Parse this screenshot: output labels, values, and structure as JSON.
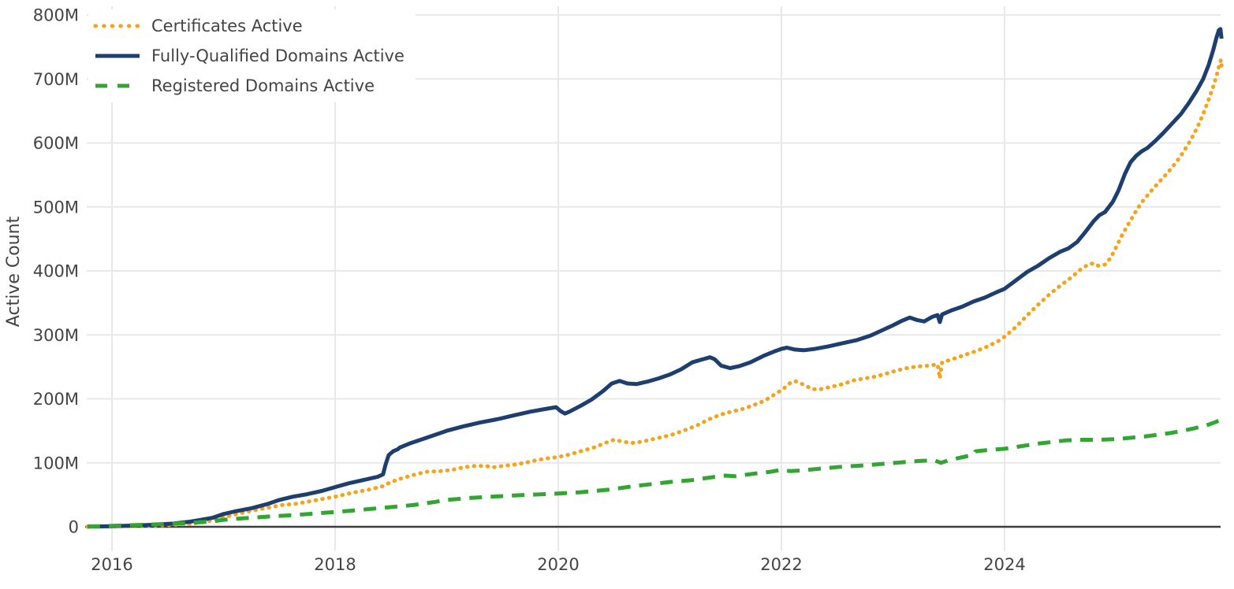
{
  "chart_data": {
    "type": "line",
    "title": "",
    "xlabel": "",
    "ylabel": "Active Count",
    "units": "millions",
    "ylim_M": [
      0,
      800
    ],
    "xlim_year": [
      2015.75,
      2025.97
    ],
    "grid": true,
    "legend_position": "top-left",
    "x_ticks": [
      {
        "year": 2016,
        "label": "2016"
      },
      {
        "year": 2018,
        "label": "2018"
      },
      {
        "year": 2020,
        "label": "2020"
      },
      {
        "year": 2022,
        "label": "2022"
      },
      {
        "year": 2024,
        "label": "2024"
      }
    ],
    "y_ticks": [
      {
        "value": 0,
        "label": "0"
      },
      {
        "value": 100,
        "label": "100M"
      },
      {
        "value": 200,
        "label": "200M"
      },
      {
        "value": 300,
        "label": "300M"
      },
      {
        "value": 400,
        "label": "400M"
      },
      {
        "value": 500,
        "label": "500M"
      },
      {
        "value": 600,
        "label": "600M"
      },
      {
        "value": 700,
        "label": "700M"
      },
      {
        "value": 800,
        "label": "800M"
      }
    ],
    "series": [
      {
        "name": "Certificates Active",
        "color": "#F5A31B",
        "line_style": "dotted",
        "points": [
          [
            2015.78,
            0.1
          ],
          [
            2016.1,
            0.7
          ],
          [
            2016.3,
            1.5
          ],
          [
            2016.5,
            2.5
          ],
          [
            2016.7,
            4.5
          ],
          [
            2016.85,
            8
          ],
          [
            2017.0,
            15
          ],
          [
            2017.12,
            20
          ],
          [
            2017.25,
            25
          ],
          [
            2017.4,
            30
          ],
          [
            2017.52,
            34
          ],
          [
            2017.65,
            36
          ],
          [
            2017.78,
            40
          ],
          [
            2017.9,
            44
          ],
          [
            2018.0,
            47
          ],
          [
            2018.15,
            53
          ],
          [
            2018.3,
            58
          ],
          [
            2018.42,
            63
          ],
          [
            2018.5,
            70
          ],
          [
            2018.6,
            76
          ],
          [
            2018.72,
            82
          ],
          [
            2018.82,
            86
          ],
          [
            2018.95,
            87
          ],
          [
            2019.05,
            89
          ],
          [
            2019.15,
            93
          ],
          [
            2019.25,
            95
          ],
          [
            2019.35,
            95
          ],
          [
            2019.42,
            93
          ],
          [
            2019.5,
            95
          ],
          [
            2019.6,
            97
          ],
          [
            2019.7,
            100
          ],
          [
            2019.8,
            104
          ],
          [
            2019.9,
            107
          ],
          [
            2020.0,
            109
          ],
          [
            2020.1,
            113
          ],
          [
            2020.2,
            118
          ],
          [
            2020.32,
            124
          ],
          [
            2020.42,
            131
          ],
          [
            2020.5,
            136
          ],
          [
            2020.58,
            133
          ],
          [
            2020.66,
            131
          ],
          [
            2020.75,
            133
          ],
          [
            2020.85,
            137
          ],
          [
            2021.0,
            143
          ],
          [
            2021.12,
            150
          ],
          [
            2021.25,
            159
          ],
          [
            2021.35,
            168
          ],
          [
            2021.45,
            175
          ],
          [
            2021.55,
            180
          ],
          [
            2021.65,
            184
          ],
          [
            2021.75,
            190
          ],
          [
            2021.85,
            197
          ],
          [
            2021.95,
            208
          ],
          [
            2022.02,
            216
          ],
          [
            2022.08,
            225
          ],
          [
            2022.12,
            228
          ],
          [
            2022.2,
            222
          ],
          [
            2022.28,
            215
          ],
          [
            2022.35,
            215
          ],
          [
            2022.45,
            219
          ],
          [
            2022.55,
            223
          ],
          [
            2022.65,
            229
          ],
          [
            2022.75,
            232
          ],
          [
            2022.85,
            235
          ],
          [
            2022.95,
            240
          ],
          [
            2023.05,
            245
          ],
          [
            2023.15,
            249
          ],
          [
            2023.25,
            251
          ],
          [
            2023.33,
            252
          ],
          [
            2023.4,
            254
          ],
          [
            2023.42,
            232
          ],
          [
            2023.44,
            257
          ],
          [
            2023.55,
            263
          ],
          [
            2023.65,
            269
          ],
          [
            2023.75,
            275
          ],
          [
            2023.85,
            282
          ],
          [
            2023.95,
            291
          ],
          [
            2024.0,
            297
          ],
          [
            2024.1,
            312
          ],
          [
            2024.2,
            330
          ],
          [
            2024.3,
            347
          ],
          [
            2024.4,
            363
          ],
          [
            2024.5,
            377
          ],
          [
            2024.6,
            390
          ],
          [
            2024.68,
            402
          ],
          [
            2024.75,
            410
          ],
          [
            2024.8,
            412
          ],
          [
            2024.84,
            408
          ],
          [
            2024.9,
            410
          ],
          [
            2024.95,
            420
          ],
          [
            2025.0,
            437
          ],
          [
            2025.05,
            455
          ],
          [
            2025.1,
            470
          ],
          [
            2025.16,
            488
          ],
          [
            2025.22,
            505
          ],
          [
            2025.3,
            522
          ],
          [
            2025.38,
            538
          ],
          [
            2025.46,
            553
          ],
          [
            2025.54,
            570
          ],
          [
            2025.6,
            585
          ],
          [
            2025.67,
            605
          ],
          [
            2025.73,
            625
          ],
          [
            2025.78,
            645
          ],
          [
            2025.83,
            668
          ],
          [
            2025.87,
            688
          ],
          [
            2025.9,
            705
          ],
          [
            2025.925,
            722
          ],
          [
            2025.94,
            730
          ],
          [
            2025.95,
            712
          ]
        ]
      },
      {
        "name": "Fully-Qualified Domains Active",
        "color": "#1C3F6F",
        "line_style": "solid",
        "points": [
          [
            2015.78,
            0.2
          ],
          [
            2016.0,
            1
          ],
          [
            2016.2,
            2
          ],
          [
            2016.4,
            3.5
          ],
          [
            2016.55,
            5
          ],
          [
            2016.7,
            8
          ],
          [
            2016.8,
            11
          ],
          [
            2016.9,
            14
          ],
          [
            2017.0,
            20
          ],
          [
            2017.1,
            24
          ],
          [
            2017.25,
            29
          ],
          [
            2017.4,
            36
          ],
          [
            2017.5,
            42
          ],
          [
            2017.62,
            47
          ],
          [
            2017.75,
            51
          ],
          [
            2017.88,
            56
          ],
          [
            2018.0,
            62
          ],
          [
            2018.12,
            68
          ],
          [
            2018.25,
            73
          ],
          [
            2018.38,
            78
          ],
          [
            2018.43,
            82
          ],
          [
            2018.45,
            96
          ],
          [
            2018.48,
            112
          ],
          [
            2018.52,
            118
          ],
          [
            2018.56,
            121
          ],
          [
            2018.58,
            124
          ],
          [
            2018.68,
            131
          ],
          [
            2018.8,
            138
          ],
          [
            2018.9,
            144
          ],
          [
            2019.0,
            150
          ],
          [
            2019.15,
            157
          ],
          [
            2019.3,
            163
          ],
          [
            2019.45,
            168
          ],
          [
            2019.6,
            174
          ],
          [
            2019.75,
            180
          ],
          [
            2019.88,
            184
          ],
          [
            2019.98,
            187
          ],
          [
            2020.02,
            181
          ],
          [
            2020.06,
            177
          ],
          [
            2020.1,
            180
          ],
          [
            2020.2,
            189
          ],
          [
            2020.3,
            199
          ],
          [
            2020.4,
            212
          ],
          [
            2020.48,
            224
          ],
          [
            2020.55,
            228
          ],
          [
            2020.62,
            224
          ],
          [
            2020.7,
            223
          ],
          [
            2020.8,
            227
          ],
          [
            2020.9,
            232
          ],
          [
            2021.0,
            238
          ],
          [
            2021.1,
            246
          ],
          [
            2021.2,
            257
          ],
          [
            2021.3,
            262
          ],
          [
            2021.36,
            265
          ],
          [
            2021.4,
            262
          ],
          [
            2021.46,
            252
          ],
          [
            2021.54,
            248
          ],
          [
            2021.62,
            251
          ],
          [
            2021.72,
            257
          ],
          [
            2021.85,
            268
          ],
          [
            2021.95,
            275
          ],
          [
            2022.0,
            278
          ],
          [
            2022.05,
            280
          ],
          [
            2022.12,
            277
          ],
          [
            2022.2,
            276
          ],
          [
            2022.3,
            278
          ],
          [
            2022.42,
            282
          ],
          [
            2022.55,
            287
          ],
          [
            2022.68,
            292
          ],
          [
            2022.8,
            299
          ],
          [
            2022.9,
            307
          ],
          [
            2023.0,
            315
          ],
          [
            2023.08,
            322
          ],
          [
            2023.15,
            327
          ],
          [
            2023.22,
            323
          ],
          [
            2023.28,
            321
          ],
          [
            2023.35,
            328
          ],
          [
            2023.4,
            331
          ],
          [
            2023.42,
            320
          ],
          [
            2023.44,
            332
          ],
          [
            2023.52,
            338
          ],
          [
            2023.62,
            344
          ],
          [
            2023.72,
            352
          ],
          [
            2023.82,
            358
          ],
          [
            2023.92,
            366
          ],
          [
            2024.0,
            372
          ],
          [
            2024.1,
            385
          ],
          [
            2024.2,
            398
          ],
          [
            2024.3,
            408
          ],
          [
            2024.4,
            420
          ],
          [
            2024.5,
            430
          ],
          [
            2024.57,
            435
          ],
          [
            2024.65,
            445
          ],
          [
            2024.72,
            460
          ],
          [
            2024.8,
            478
          ],
          [
            2024.85,
            487
          ],
          [
            2024.9,
            492
          ],
          [
            2024.97,
            508
          ],
          [
            2025.02,
            525
          ],
          [
            2025.08,
            552
          ],
          [
            2025.13,
            570
          ],
          [
            2025.18,
            580
          ],
          [
            2025.23,
            587
          ],
          [
            2025.28,
            592
          ],
          [
            2025.35,
            603
          ],
          [
            2025.42,
            615
          ],
          [
            2025.5,
            630
          ],
          [
            2025.58,
            645
          ],
          [
            2025.65,
            662
          ],
          [
            2025.72,
            681
          ],
          [
            2025.78,
            700
          ],
          [
            2025.83,
            722
          ],
          [
            2025.87,
            745
          ],
          [
            2025.9,
            765
          ],
          [
            2025.92,
            776
          ],
          [
            2025.935,
            778
          ],
          [
            2025.945,
            763
          ]
        ]
      },
      {
        "name": "Registered Domains Active",
        "color": "#33A532",
        "line_style": "dashed",
        "points": [
          [
            2015.78,
            0.4
          ],
          [
            2016.0,
            1.5
          ],
          [
            2016.25,
            3
          ],
          [
            2016.5,
            4.5
          ],
          [
            2016.7,
            6
          ],
          [
            2016.9,
            8.5
          ],
          [
            2017.0,
            11
          ],
          [
            2017.2,
            13.5
          ],
          [
            2017.4,
            16
          ],
          [
            2017.6,
            18
          ],
          [
            2017.8,
            20.5
          ],
          [
            2018.0,
            23
          ],
          [
            2018.2,
            26
          ],
          [
            2018.45,
            30
          ],
          [
            2018.7,
            34
          ],
          [
            2018.9,
            39
          ],
          [
            2019.0,
            42
          ],
          [
            2019.2,
            45
          ],
          [
            2019.4,
            47
          ],
          [
            2019.6,
            49
          ],
          [
            2019.8,
            50.5
          ],
          [
            2020.0,
            52
          ],
          [
            2020.2,
            54
          ],
          [
            2020.45,
            58
          ],
          [
            2020.7,
            64
          ],
          [
            2020.85,
            67
          ],
          [
            2021.0,
            70
          ],
          [
            2021.2,
            73
          ],
          [
            2021.4,
            78
          ],
          [
            2021.5,
            80
          ],
          [
            2021.58,
            79
          ],
          [
            2021.75,
            83
          ],
          [
            2021.9,
            86
          ],
          [
            2022.0,
            89
          ],
          [
            2022.08,
            87
          ],
          [
            2022.18,
            88
          ],
          [
            2022.35,
            91
          ],
          [
            2022.55,
            94
          ],
          [
            2022.75,
            96
          ],
          [
            2022.95,
            99
          ],
          [
            2023.1,
            101
          ],
          [
            2023.25,
            103
          ],
          [
            2023.37,
            104
          ],
          [
            2023.43,
            100
          ],
          [
            2023.5,
            104
          ],
          [
            2023.6,
            108
          ],
          [
            2023.68,
            111
          ],
          [
            2023.72,
            112
          ],
          [
            2023.74,
            118
          ],
          [
            2023.85,
            120
          ],
          [
            2024.0,
            122
          ],
          [
            2024.15,
            126
          ],
          [
            2024.3,
            130
          ],
          [
            2024.45,
            133
          ],
          [
            2024.55,
            135
          ],
          [
            2024.7,
            136
          ],
          [
            2024.85,
            136
          ],
          [
            2025.0,
            137
          ],
          [
            2025.12,
            139
          ],
          [
            2025.25,
            141
          ],
          [
            2025.38,
            144
          ],
          [
            2025.5,
            147
          ],
          [
            2025.6,
            150
          ],
          [
            2025.7,
            154
          ],
          [
            2025.8,
            158
          ],
          [
            2025.88,
            163
          ],
          [
            2025.94,
            167
          ]
        ]
      }
    ]
  },
  "colors": {
    "text": "#444444",
    "grid": "#e8e8e8",
    "axis_line": "#3d3d3d",
    "background": "#ffffff"
  }
}
